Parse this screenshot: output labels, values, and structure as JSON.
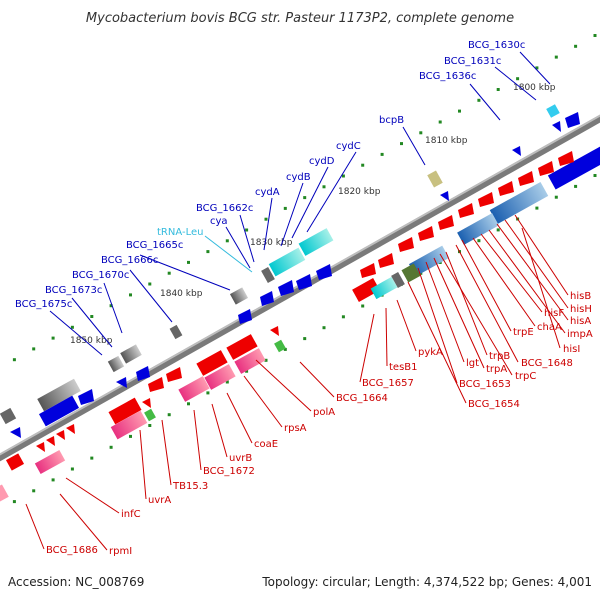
{
  "title": "Mycobacterium bovis BCG str. Pasteur 1173P2, complete genome",
  "footer": {
    "accession": "Accession: NC_008769",
    "summary": "Topology: circular; Length: 4,374,522 bp; Genes: 4,001"
  },
  "colors": {
    "forward_label": "#cc0000",
    "reverse_label": "#0000bb",
    "rna_label": "#33bbdd",
    "backbone": "#7a7a7a",
    "tick": "#228822"
  },
  "kbp_markers": [
    "1800 kbp",
    "1810 kbp",
    "1820 kbp",
    "1830 kbp",
    "1840 kbp",
    "1850 kbp"
  ],
  "reverse_genes": [
    "BCG_1630c",
    "BCG_1631c",
    "BCG_1636c",
    "bcpB",
    "cydC",
    "cydD",
    "cydB",
    "cydA",
    "BCG_1662c",
    "cya",
    "tRNA-Leu",
    "BCG_1665c",
    "BCG_1666c",
    "BCG_1670c",
    "BCG_1673c",
    "BCG_1675c"
  ],
  "forward_genes": [
    "hisB",
    "hisH",
    "hisA",
    "impA",
    "hisF",
    "chaA",
    "hisI",
    "trpE",
    "BCG_1648",
    "trpB",
    "trpC",
    "trpA",
    "lgt",
    "BCG_1653",
    "pykA",
    "BCG_1654",
    "tesB1",
    "BCG_1657",
    "BCG_1664",
    "polA",
    "rpsA",
    "coaE",
    "uvrB",
    "BCG_1672",
    "TB15.3",
    "uvrA",
    "infC",
    "rpmI",
    "BCG_1686"
  ]
}
